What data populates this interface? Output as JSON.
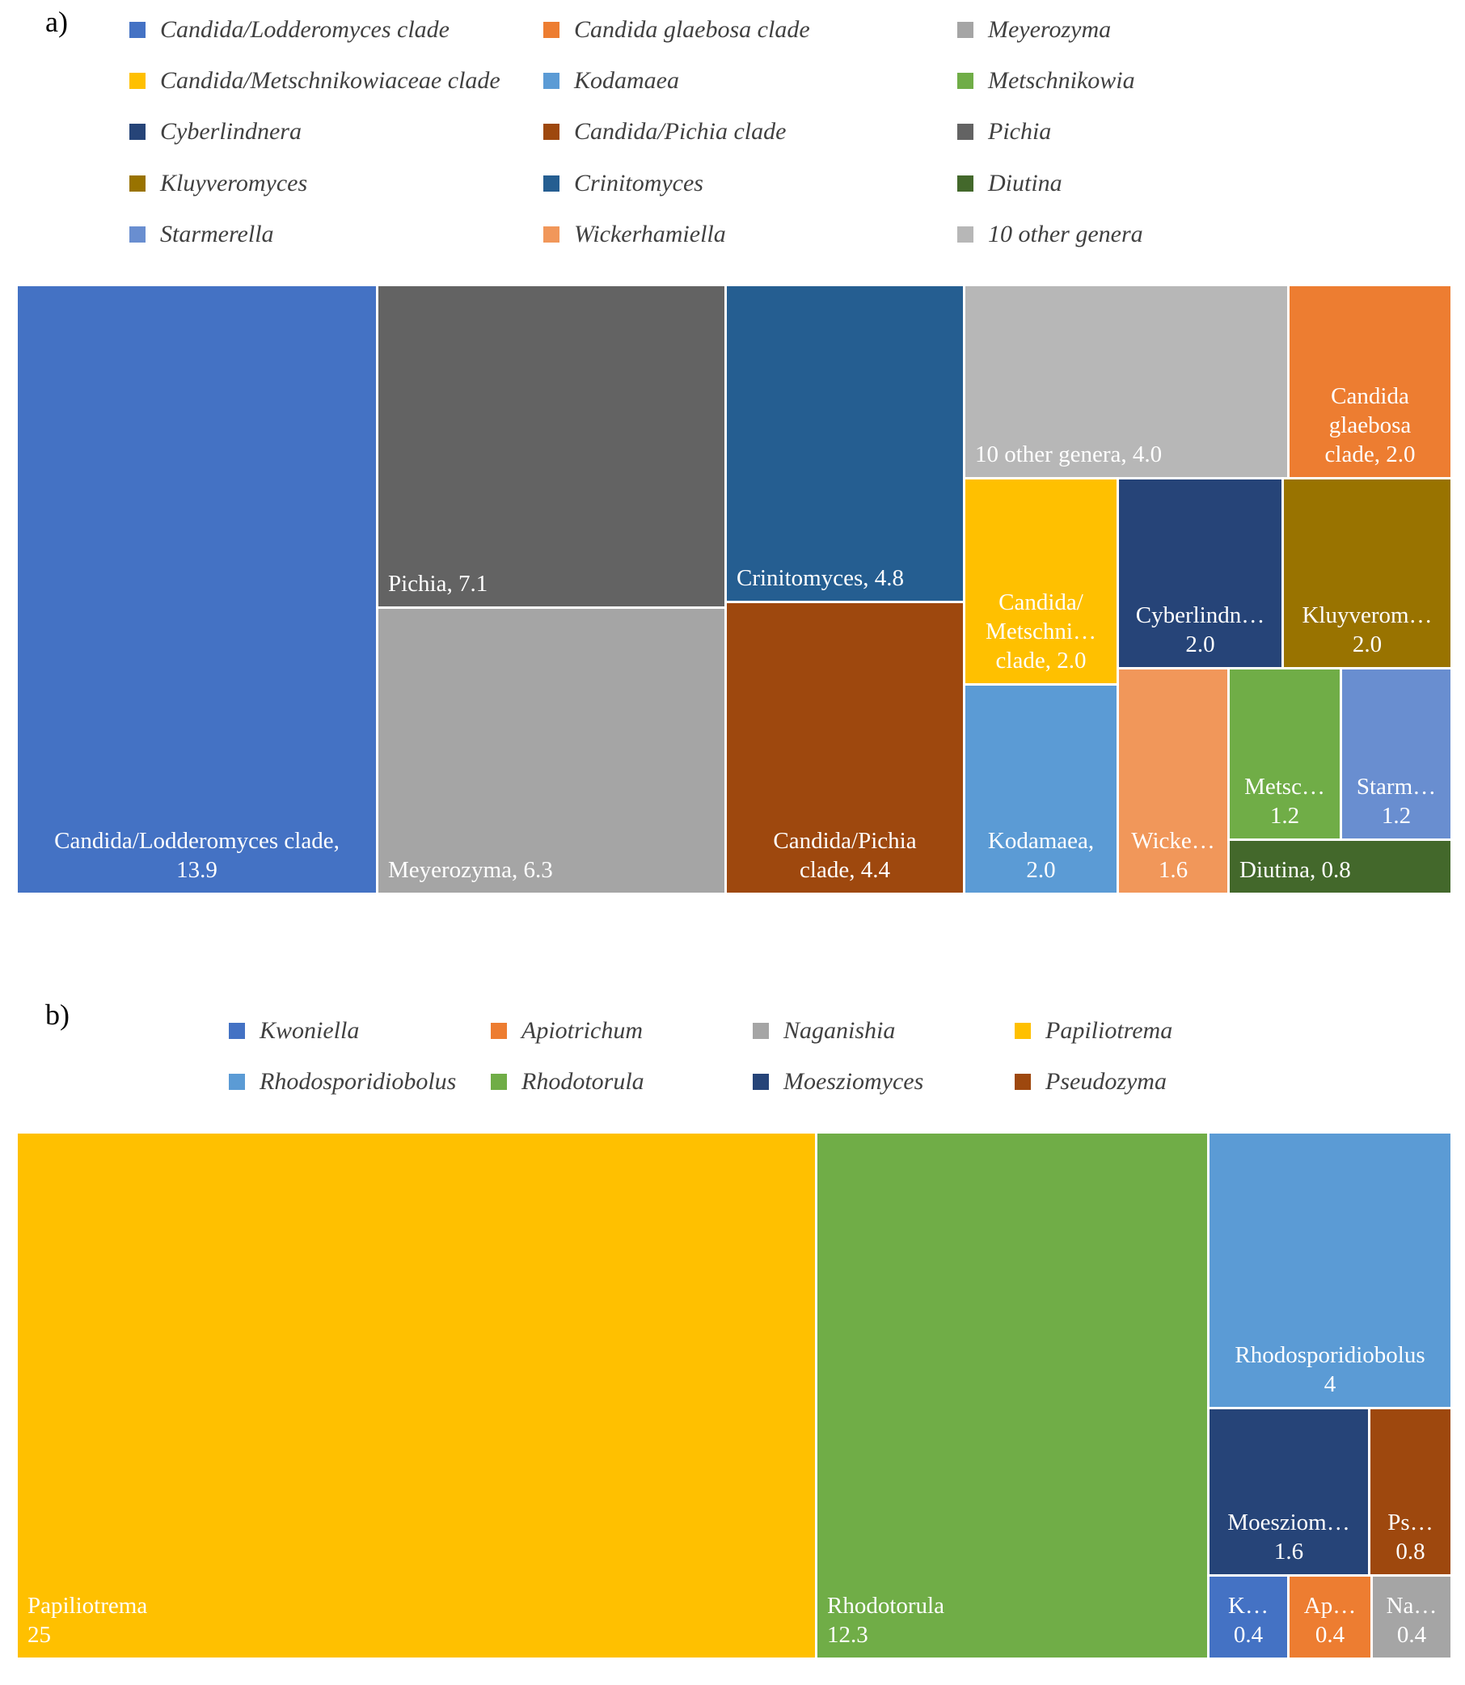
{
  "chart_data": [
    {
      "type": "treemap",
      "panel_label": "a)",
      "legend": [
        {
          "name": "Candida/Lodderomyces clade",
          "color": "#4472C4"
        },
        {
          "name": "Candida glaebosa clade",
          "color": "#ED7D31"
        },
        {
          "name": "Meyerozyma",
          "color": "#A5A5A5"
        },
        {
          "name": "Candida/Metschnikowiaceae clade",
          "color": "#FFC000"
        },
        {
          "name": "Kodamaea",
          "color": "#5B9BD5"
        },
        {
          "name": "Metschnikowia",
          "color": "#70AD47"
        },
        {
          "name": "Cyberlindnera",
          "color": "#264478"
        },
        {
          "name": "Candida/Pichia clade",
          "color": "#9E480E"
        },
        {
          "name": "Pichia",
          "color": "#636363"
        },
        {
          "name": "Kluyveromyces",
          "color": "#997300"
        },
        {
          "name": "Crinitomyces",
          "color": "#255E91"
        },
        {
          "name": "Diutina",
          "color": "#43682B"
        },
        {
          "name": "Starmerella",
          "color": "#698ED0"
        },
        {
          "name": "Wickerhamiella",
          "color": "#F1975A"
        },
        {
          "name": "10 other genera",
          "color": "#B7B7B7"
        }
      ],
      "tiles": [
        {
          "name": "Candida/Lodderomyces clade",
          "value": 13.9,
          "label_lines": [
            "Candida/Lodderomyces clade,",
            "13.9"
          ]
        },
        {
          "name": "Pichia",
          "value": 7.1,
          "label_lines": [
            "Pichia, 7.1"
          ]
        },
        {
          "name": "Meyerozyma",
          "value": 6.3,
          "label_lines": [
            "Meyerozyma, 6.3"
          ]
        },
        {
          "name": "Crinitomyces",
          "value": 4.8,
          "label_lines": [
            "Crinitomyces, 4.8"
          ]
        },
        {
          "name": "Candida/Pichia clade",
          "value": 4.4,
          "label_lines": [
            "Candida/Pichia",
            "clade, 4.4"
          ]
        },
        {
          "name": "10 other genera",
          "value": 4.0,
          "label_lines": [
            "10 other genera, 4.0"
          ]
        },
        {
          "name": "Candida glaebosa clade",
          "value": 2.0,
          "label_lines": [
            "Candida",
            "glaebosa",
            "clade, 2.0"
          ]
        },
        {
          "name": "Candida/Metschnikowiaceae clade",
          "value": 2.0,
          "label_lines": [
            "Candida/",
            "Metschni…",
            "clade, 2.0"
          ]
        },
        {
          "name": "Cyberlindnera",
          "value": 2.0,
          "label_lines": [
            "Cyberlindn…",
            "2.0"
          ]
        },
        {
          "name": "Kluyveromyces",
          "value": 2.0,
          "label_lines": [
            "Kluyverom…",
            "2.0"
          ]
        },
        {
          "name": "Kodamaea",
          "value": 2.0,
          "label_lines": [
            "Kodamaea,",
            "2.0"
          ]
        },
        {
          "name": "Wickerhamiella",
          "value": 1.6,
          "label_lines": [
            "Wicke…",
            "1.6"
          ]
        },
        {
          "name": "Metschnikowia",
          "value": 1.2,
          "label_lines": [
            "Metsc…",
            "1.2"
          ]
        },
        {
          "name": "Starmerella",
          "value": 1.2,
          "label_lines": [
            "Starm…",
            "1.2"
          ]
        },
        {
          "name": "Diutina",
          "value": 0.8,
          "label_lines": [
            "Diutina, 0.8"
          ]
        }
      ]
    },
    {
      "type": "treemap",
      "panel_label": "b)",
      "legend": [
        {
          "name": "Kwoniella",
          "color": "#4472C4"
        },
        {
          "name": "Apiotrichum",
          "color": "#ED7D31"
        },
        {
          "name": "Naganishia",
          "color": "#A5A5A5"
        },
        {
          "name": "Papiliotrema",
          "color": "#FFC000"
        },
        {
          "name": "Rhodosporidiobolus",
          "color": "#5B9BD5"
        },
        {
          "name": "Rhodotorula",
          "color": "#70AD47"
        },
        {
          "name": "Moesziomyces",
          "color": "#264478"
        },
        {
          "name": "Pseudozyma",
          "color": "#9E480E"
        }
      ],
      "tiles": [
        {
          "name": "Papiliotrema",
          "value": 25,
          "label_lines": [
            "Papiliotrema",
            "25"
          ]
        },
        {
          "name": "Rhodotorula",
          "value": 12.3,
          "label_lines": [
            "Rhodotorula",
            "12.3"
          ]
        },
        {
          "name": "Rhodosporidiobolus",
          "value": 4,
          "label_lines": [
            "Rhodosporidiobolus",
            "4"
          ]
        },
        {
          "name": "Moesziomyces",
          "value": 1.6,
          "label_lines": [
            "Moesziom…",
            "1.6"
          ]
        },
        {
          "name": "Pseudozyma",
          "value": 0.8,
          "label_lines": [
            "Ps…",
            "0.8"
          ]
        },
        {
          "name": "Kwoniella",
          "value": 0.4,
          "label_lines": [
            "K…",
            "0.4"
          ]
        },
        {
          "name": "Apiotrichum",
          "value": 0.4,
          "label_lines": [
            "Ap…",
            "0.4"
          ]
        },
        {
          "name": "Naganishia",
          "value": 0.4,
          "label_lines": [
            "Na…",
            "0.4"
          ]
        }
      ]
    }
  ]
}
